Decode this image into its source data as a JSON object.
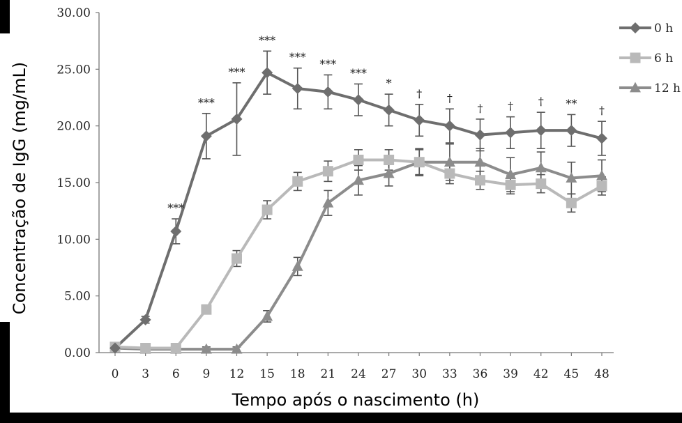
{
  "chart_data": {
    "type": "line",
    "xlabel": "Tempo após o nascimento (h)",
    "ylabel": "Concentração de IgG (mg/mL)",
    "x": [
      0,
      3,
      6,
      9,
      12,
      15,
      18,
      21,
      24,
      27,
      30,
      33,
      36,
      39,
      42,
      45,
      48
    ],
    "x_tick_labels": [
      "0",
      "3",
      "6",
      "9",
      "12",
      "15",
      "18",
      "21",
      "24",
      "27",
      "30",
      "33",
      "36",
      "39",
      "42",
      "45",
      "48"
    ],
    "ylim": [
      0,
      30
    ],
    "y_tick_labels": [
      "0.00",
      "5.00",
      "10.00",
      "15.00",
      "20.00",
      "25.00",
      "30.00"
    ],
    "grid": false,
    "legend_position": "top-right",
    "series": [
      {
        "name": "0 h",
        "marker": "diamond",
        "color": "#6e6e6e",
        "values": [
          0.4,
          2.9,
          10.7,
          19.1,
          20.6,
          24.7,
          23.3,
          23.0,
          22.3,
          21.4,
          20.5,
          20.0,
          19.2,
          19.4,
          19.6,
          19.6,
          18.9
        ],
        "errors": [
          0.3,
          0.3,
          1.1,
          2.0,
          3.2,
          1.9,
          1.8,
          1.5,
          1.4,
          1.4,
          1.4,
          1.5,
          1.4,
          1.4,
          1.6,
          1.4,
          1.5
        ]
      },
      {
        "name": "6 h",
        "marker": "square",
        "color": "#b9b9b9",
        "values": [
          0.5,
          0.4,
          0.4,
          3.8,
          8.3,
          12.6,
          15.1,
          16.0,
          17.0,
          17.0,
          16.8,
          15.8,
          15.2,
          14.8,
          14.9,
          13.2,
          14.7
        ],
        "errors": [
          0.2,
          0.2,
          0.2,
          0.4,
          0.7,
          0.8,
          0.8,
          0.9,
          0.9,
          0.9,
          1.1,
          0.9,
          0.8,
          0.8,
          0.8,
          0.8,
          0.8
        ]
      },
      {
        "name": "12 h",
        "marker": "triangle",
        "color": "#8c8c8c",
        "values": [
          0.4,
          0.3,
          0.3,
          0.3,
          0.3,
          3.2,
          7.6,
          13.2,
          15.2,
          15.8,
          16.8,
          16.8,
          16.8,
          15.7,
          16.3,
          15.4,
          15.6
        ],
        "errors": [
          0.2,
          0.2,
          0.2,
          0.2,
          0.2,
          0.5,
          0.8,
          1.1,
          1.3,
          1.1,
          1.2,
          1.6,
          1.2,
          1.5,
          1.4,
          1.4,
          1.4
        ]
      }
    ],
    "significance": [
      {
        "x": 6,
        "label": "***"
      },
      {
        "x": 9,
        "label": "***"
      },
      {
        "x": 12,
        "label": "***"
      },
      {
        "x": 15,
        "label": "***"
      },
      {
        "x": 18,
        "label": "***"
      },
      {
        "x": 21,
        "label": "***"
      },
      {
        "x": 24,
        "label": "***"
      },
      {
        "x": 27,
        "label": "*"
      },
      {
        "x": 30,
        "label": "†"
      },
      {
        "x": 33,
        "label": "†"
      },
      {
        "x": 36,
        "label": "†"
      },
      {
        "x": 39,
        "label": "†"
      },
      {
        "x": 42,
        "label": "†"
      },
      {
        "x": 45,
        "label": "**"
      },
      {
        "x": 48,
        "label": "†"
      }
    ]
  }
}
